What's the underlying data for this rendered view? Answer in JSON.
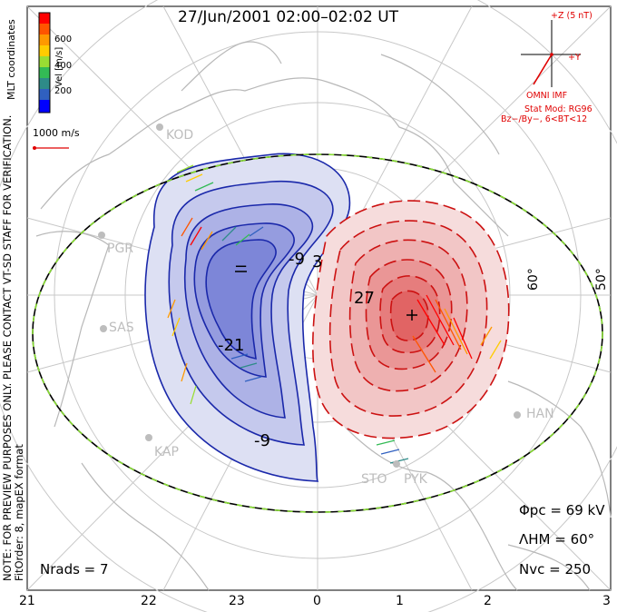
{
  "title": "27/Jun/2001 02:00–02:02 UT",
  "side_note": {
    "line1": "NOTE: FOR PREVIEW PURPOSES ONLY. PLEASE CONTACT VT-SD STAFF FOR VERIFICATION.",
    "line2": "FitOrder: 8, mapEX format",
    "coords": "MLT coordinates"
  },
  "colorbar": {
    "title": "Vel [m/s]",
    "ticks": [
      "600",
      "400",
      "200"
    ],
    "colors": [
      "#ff0000",
      "#ff5500",
      "#ff9900",
      "#ffcc00",
      "#99dd33",
      "#33bb55",
      "#2e8b88",
      "#3060c0",
      "#0000ff"
    ]
  },
  "scale_label": "1000 m/s",
  "omni": {
    "plus_z": "+Z (5 nT)",
    "plus_y": "+Y",
    "label": "OMNI IMF",
    "stat_mod": "Stat Mod: RG96",
    "condition": "Bz−/By−, 6<BT<12"
  },
  "stats": {
    "phi_pc": "Φpc = 69 kV",
    "lambda_hm": "ΛHM = 60°",
    "n_vc": "Nvc = 250",
    "n_rads": "Nrads = 7"
  },
  "mlt_labels": [
    "21",
    "22",
    "23",
    "0",
    "1",
    "2",
    "3"
  ],
  "lat_labels": [
    "60°",
    "50°"
  ],
  "stations": [
    "KOD",
    "PGR",
    "SAS",
    "KAP",
    "STO",
    "PYK",
    "HAN"
  ],
  "contour_labels": {
    "dawn": [
      "-9",
      "-9",
      "-21",
      "−"
    ],
    "dusk": [
      "3",
      "27",
      "+"
    ]
  },
  "map_colors": {
    "dawn_cell": "#2233cc",
    "dusk_cell": "#cc1111",
    "coastline": "#b8b8b8",
    "grid": "#c8c8c8",
    "hmb_line": "#88dd33"
  }
}
